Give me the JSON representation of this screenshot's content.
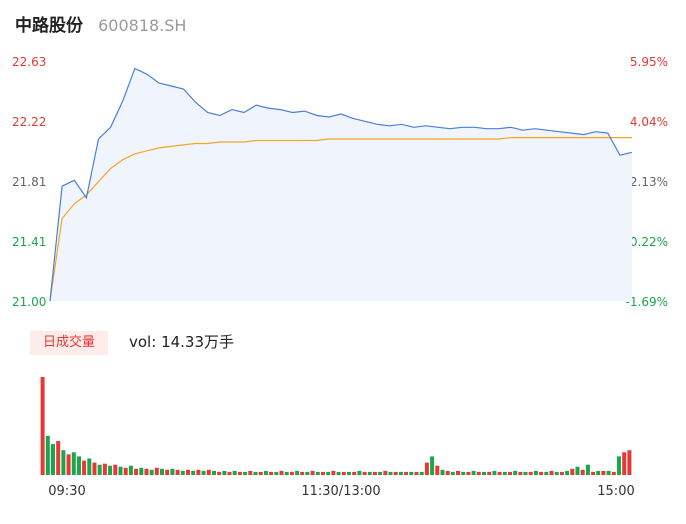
{
  "header": {
    "name": "中路股份",
    "code": "600818.SH"
  },
  "volume_panel": {
    "tab_label": "日成交量",
    "vol_prefix": "vol:",
    "vol_value": "14.33万手"
  },
  "colors": {
    "price_line": "#4a7fd8",
    "avg_line": "#f5a623",
    "up": "#e53935",
    "down": "#1aa64a",
    "area_fill": "#f0f5fd",
    "axis_text": "#666666"
  },
  "chart_data": [
    {
      "type": "line",
      "y_axis_left": [
        "22.63",
        "22.22",
        "21.81",
        "21.41",
        "21.00"
      ],
      "y_axis_right": [
        "5.95%",
        "4.04%",
        "2.13%",
        "0.22%",
        "-1.69%"
      ],
      "x_ticks": [
        "09:30",
        "11:30/13:00",
        "15:00"
      ],
      "ylim": [
        21.0,
        22.63
      ],
      "x": [
        "09:30",
        "09:35",
        "09:40",
        "09:45",
        "09:50",
        "09:55",
        "10:00",
        "10:05",
        "10:10",
        "10:15",
        "10:20",
        "10:25",
        "10:30",
        "10:35",
        "10:40",
        "10:45",
        "10:50",
        "10:55",
        "11:00",
        "11:05",
        "11:10",
        "11:15",
        "11:20",
        "11:25",
        "11:30",
        "13:05",
        "13:10",
        "13:15",
        "13:20",
        "13:25",
        "13:30",
        "13:35",
        "13:40",
        "13:45",
        "13:50",
        "13:55",
        "14:00",
        "14:05",
        "14:10",
        "14:15",
        "14:20",
        "14:25",
        "14:30",
        "14:35",
        "14:40",
        "14:45",
        "14:50",
        "14:55",
        "15:00"
      ],
      "series": [
        {
          "values": [
            21.0,
            21.78,
            21.82,
            21.7,
            22.1,
            22.18,
            22.36,
            22.58,
            22.54,
            22.48,
            22.46,
            22.44,
            22.35,
            22.28,
            22.26,
            22.3,
            22.28,
            22.33,
            22.31,
            22.3,
            22.28,
            22.29,
            22.26,
            22.25,
            22.27,
            22.24,
            22.22,
            22.2,
            22.19,
            22.2,
            22.18,
            22.19,
            22.18,
            22.17,
            22.18,
            22.18,
            22.17,
            22.17,
            22.18,
            22.16,
            22.17,
            22.16,
            22.15,
            22.14,
            22.13,
            22.15,
            22.14,
            21.99,
            22.01
          ]
        },
        {
          "values": [
            21.0,
            21.56,
            21.66,
            21.72,
            21.81,
            21.9,
            21.96,
            22.0,
            22.02,
            22.04,
            22.05,
            22.06,
            22.07,
            22.07,
            22.08,
            22.08,
            22.08,
            22.09,
            22.09,
            22.09,
            22.09,
            22.09,
            22.09,
            22.1,
            22.1,
            22.1,
            22.1,
            22.1,
            22.1,
            22.1,
            22.1,
            22.1,
            22.1,
            22.1,
            22.1,
            22.1,
            22.1,
            22.1,
            22.11,
            22.11,
            22.11,
            22.11,
            22.11,
            22.11,
            22.11,
            22.11,
            22.11,
            22.11,
            22.11
          ]
        }
      ]
    },
    {
      "type": "bar",
      "title": "日成交量",
      "values": [
        95,
        38,
        30,
        33,
        24,
        20,
        22,
        18,
        14,
        16,
        12,
        10,
        11,
        9,
        10,
        8,
        7,
        9,
        6,
        7,
        6,
        5,
        7,
        6,
        5,
        6,
        5,
        4,
        5,
        4,
        5,
        4,
        5,
        4,
        3,
        4,
        3,
        4,
        3,
        3,
        4,
        3,
        3,
        4,
        3,
        3,
        4,
        3,
        3,
        4,
        3,
        3,
        4,
        3,
        3,
        3,
        4,
        3,
        3,
        3,
        3,
        4,
        3,
        3,
        3,
        3,
        4,
        3,
        3,
        3,
        3,
        3,
        3,
        3,
        12,
        18,
        9,
        5,
        4,
        3,
        4,
        3,
        3,
        4,
        3,
        3,
        3,
        4,
        3,
        3,
        3,
        4,
        3,
        3,
        3,
        4,
        3,
        3,
        4,
        3,
        3,
        4,
        6,
        8,
        5,
        10,
        3,
        4,
        4,
        4,
        3,
        18,
        22,
        24
      ],
      "up": [
        true,
        false,
        false,
        true,
        false,
        true,
        false,
        false,
        true,
        false,
        true,
        false,
        true,
        false,
        true,
        false,
        true,
        false,
        true,
        false,
        true,
        false,
        true,
        false,
        true,
        false,
        true,
        false,
        true,
        false,
        true,
        false,
        true,
        false,
        true,
        false,
        true,
        false,
        true,
        false,
        true,
        false,
        true,
        false,
        true,
        false,
        true,
        false,
        true,
        false,
        true,
        false,
        true,
        false,
        true,
        false,
        true,
        false,
        true,
        false,
        true,
        false,
        true,
        false,
        true,
        false,
        true,
        false,
        true,
        false,
        true,
        false,
        true,
        false,
        true,
        false,
        true,
        false,
        true,
        false,
        true,
        false,
        true,
        false,
        true,
        false,
        true,
        false,
        true,
        false,
        true,
        false,
        true,
        false,
        true,
        false,
        true,
        false,
        true,
        false,
        true,
        false,
        true,
        false,
        true,
        false,
        true,
        false,
        true,
        false,
        true,
        false,
        true,
        true
      ]
    }
  ]
}
